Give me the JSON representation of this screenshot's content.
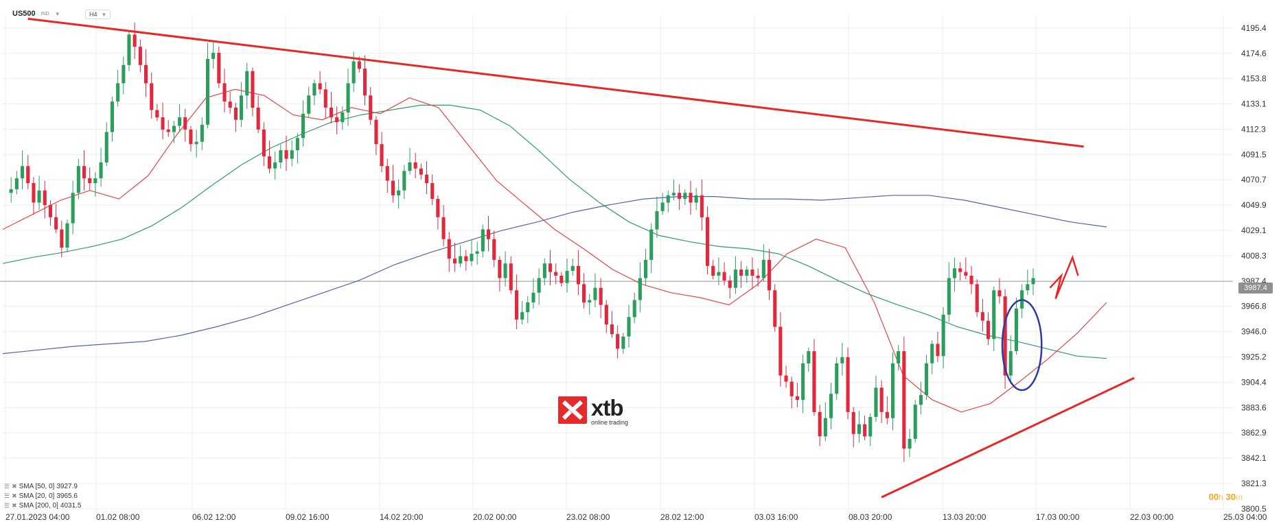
{
  "header": {
    "symbol": "US500",
    "exchange": "IND",
    "timeframe": "H4"
  },
  "chart_data": {
    "type": "candlestick",
    "symbol": "US500",
    "timeframe": "H4",
    "ylim": [
      3800.5,
      4206
    ],
    "y_ticks": [
      "4195.4",
      "4174.6",
      "4153.8",
      "4133.1",
      "4112.3",
      "4091.5",
      "4070.7",
      "4049.9",
      "4029.1",
      "4008.3",
      "3987.4",
      "3966.8",
      "3946.0",
      "3925.2",
      "3904.4",
      "3883.6",
      "3862.9",
      "3842.1",
      "3821.3",
      "3800.5"
    ],
    "x_ticks": [
      "27.01.2023  04:00",
      "01.02  08:00",
      "06.02  12:00",
      "09.02  16:00",
      "14.02  20:00",
      "20.02  00:00",
      "23.02  08:00",
      "28.02  12:00",
      "03.03  16:00",
      "08.03  20:00",
      "13.03  20:00",
      "17.03  00:00",
      "22.03  00:00",
      "25.03  04:00"
    ],
    "current_price": "3987.4",
    "close_path": [
      4060,
      4063,
      4072,
      4082,
      4068,
      4052,
      4062,
      4050,
      4040,
      4030,
      4015,
      4035,
      4060,
      4082,
      4072,
      4068,
      4072,
      4085,
      4110,
      4135,
      4150,
      4165,
      4190,
      4180,
      4165,
      4150,
      4128,
      4122,
      4112,
      4110,
      4115,
      4122,
      4112,
      4100,
      4102,
      4116,
      4170,
      4175,
      4150,
      4135,
      4130,
      4120,
      4140,
      4160,
      4130,
      4112,
      4090,
      4080,
      4085,
      4095,
      4088,
      4095,
      4105,
      4125,
      4140,
      4150,
      4145,
      4130,
      4122,
      4118,
      4126,
      4150,
      4168,
      4162,
      4140,
      4120,
      4100,
      4082,
      4070,
      4058,
      4062,
      4078,
      4085,
      4080,
      4075,
      4068,
      4055,
      4040,
      4022,
      4006,
      4002,
      4008,
      4004,
      4010,
      4012,
      4030,
      4022,
      4005,
      3990,
      4002,
      3980,
      3956,
      3962,
      3970,
      3978,
      3990,
      4002,
      3995,
      3992,
      3986,
      3996,
      4000,
      3985,
      3970,
      3972,
      3982,
      3968,
      3952,
      3944,
      3932,
      3942,
      3958,
      3972,
      3990,
      4005,
      4030,
      4045,
      4052,
      4058,
      4060,
      4055,
      4060,
      4052,
      4058,
      4040,
      4000,
      3992,
      3995,
      3988,
      3982,
      3997,
      3992,
      3997,
      3992,
      3990,
      4005,
      3980,
      3950,
      3910,
      3905,
      3893,
      3890,
      3920,
      3930,
      3880,
      3860,
      3875,
      3895,
      3920,
      3925,
      3880,
      3862,
      3870,
      3860,
      3876,
      3900,
      3880,
      3875,
      3920,
      3930,
      3850,
      3858,
      3886,
      3894,
      3920,
      3936,
      3926,
      3960,
      3990,
      3998,
      3995,
      3992,
      3985,
      3962,
      3955,
      3940,
      3980,
      3975,
      3910,
      3930,
      3965,
      3980,
      3985,
      3990
    ],
    "series": [
      {
        "name": "SMA [50, 0]",
        "value": "3927.9",
        "color": "#2e9c6a",
        "values": [
          4002,
          4007,
          4011,
          4016,
          4022,
          4033,
          4048,
          4066,
          4083,
          4097,
          4108,
          4118,
          4124,
          4128,
          4132,
          4132,
          4128,
          4115,
          4094,
          4071,
          4052,
          4036,
          4025,
          4020,
          4016,
          4014,
          4010,
          4000,
          3988,
          3977,
          3968,
          3960,
          3950,
          3943,
          3938,
          3932,
          3926,
          3924
        ]
      },
      {
        "name": "SMA [20, 0]",
        "value": "3965.6",
        "color": "#e64545",
        "values": [
          4030,
          4042,
          4054,
          4062,
          4055,
          4074,
          4108,
          4138,
          4145,
          4140,
          4124,
          4120,
          4130,
          4125,
          4138,
          4130,
          4100,
          4070,
          4050,
          4030,
          4014,
          3997,
          3985,
          3978,
          3974,
          3968,
          3985,
          4010,
          4022,
          4015,
          3970,
          3910,
          3890,
          3880,
          3887,
          3905,
          3924,
          3945,
          3970
        ]
      },
      {
        "name": "SMA [200, 0]",
        "value": "4031.5",
        "color": "#5561a8",
        "values": [
          3928,
          3931,
          3934,
          3936,
          3938,
          3943,
          3950,
          3958,
          3968,
          3978,
          3988,
          4001,
          4011,
          4020,
          4029,
          4036,
          4044,
          4050,
          4055,
          4057,
          4057,
          4055,
          4055,
          4054,
          4056,
          4058,
          4058,
          4054,
          4048,
          4042,
          4036,
          4032
        ]
      }
    ],
    "trendlines": [
      {
        "name": "resistance",
        "color": "#e82626",
        "from": [
          4,
          4203
        ],
        "to": [
          192,
          4098
        ]
      },
      {
        "name": "support",
        "color": "#e82626",
        "from": [
          156,
          3810
        ],
        "to": [
          201,
          3908
        ]
      }
    ],
    "annotations": [
      {
        "name": "ellipse-highlight",
        "color": "#2d3aa6",
        "center": [
          181,
          3935
        ],
        "rx": 3.5,
        "ry": 37
      },
      {
        "name": "projection-zigzag",
        "color": "#e82626",
        "points": [
          [
            186,
            3982
          ],
          [
            188,
            3992
          ],
          [
            187,
            3973
          ],
          [
            190,
            4007
          ],
          [
            191,
            3992
          ]
        ]
      }
    ]
  },
  "legend": {
    "sma50": {
      "label": "SMA [50, 0]",
      "value": "3927.9"
    },
    "sma20": {
      "label": "SMA [20, 0]",
      "value": "3965.6"
    },
    "sma200": {
      "label": "SMA [200, 0]",
      "value": "4031.5"
    }
  },
  "logo": {
    "name": "xtb",
    "tagline": "online trading"
  },
  "timer": {
    "h": "00",
    "h_unit": "h",
    "m": "30",
    "m_unit": "m"
  },
  "colors": {
    "up": "#2b9e5e",
    "down": "#e1283c",
    "trend": "#e82626",
    "grid": "#eeeeee",
    "price_line": "#9a9a9a"
  }
}
